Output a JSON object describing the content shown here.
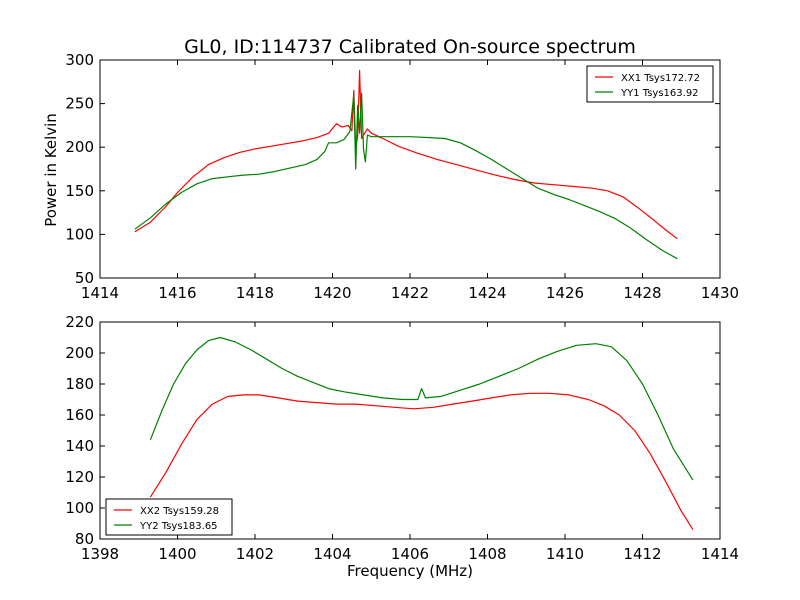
{
  "chart_data": [
    {
      "type": "line",
      "title": "GL0, ID:114737 Calibrated On-source spectrum",
      "xlabel": "",
      "ylabel": "Power in Kelvin",
      "xlim": [
        1414,
        1430
      ],
      "ylim": [
        50,
        300
      ],
      "xticks": [
        "1414",
        "1416",
        "1418",
        "1420",
        "1422",
        "1424",
        "1426",
        "1428",
        "1430"
      ],
      "yticks": [
        "50",
        "100",
        "150",
        "200",
        "250",
        "300"
      ],
      "grid": false,
      "legend_position": "top-right",
      "series": [
        {
          "name": "XX1 Tsys172.72",
          "color": "#ff0000",
          "points": [
            [
              1414.9,
              103
            ],
            [
              1415.3,
              114
            ],
            [
              1415.7,
              132
            ],
            [
              1416.0,
              148
            ],
            [
              1416.4,
              166
            ],
            [
              1416.8,
              180
            ],
            [
              1417.2,
              188
            ],
            [
              1417.6,
              194
            ],
            [
              1418.0,
              198
            ],
            [
              1418.4,
              201
            ],
            [
              1418.8,
              204
            ],
            [
              1419.2,
              207
            ],
            [
              1419.6,
              211
            ],
            [
              1419.9,
              216
            ],
            [
              1420.1,
              227
            ],
            [
              1420.25,
              223
            ],
            [
              1420.4,
              225
            ],
            [
              1420.5,
              219
            ],
            [
              1420.55,
              265
            ],
            [
              1420.6,
              200
            ],
            [
              1420.65,
              212
            ],
            [
              1420.7,
              288
            ],
            [
              1420.75,
              210
            ],
            [
              1420.8,
              214
            ],
            [
              1420.9,
              221
            ],
            [
              1421.0,
              216
            ],
            [
              1421.3,
              210
            ],
            [
              1421.7,
              201
            ],
            [
              1422.2,
              193
            ],
            [
              1422.7,
              186
            ],
            [
              1423.2,
              180
            ],
            [
              1423.7,
              174
            ],
            [
              1424.2,
              168
            ],
            [
              1424.7,
              163
            ],
            [
              1425.2,
              159
            ],
            [
              1425.7,
              157
            ],
            [
              1426.2,
              155
            ],
            [
              1426.7,
              153
            ],
            [
              1427.1,
              150
            ],
            [
              1427.5,
              143
            ],
            [
              1427.9,
              130
            ],
            [
              1428.3,
              116
            ],
            [
              1428.6,
              105
            ],
            [
              1428.9,
              95
            ]
          ]
        },
        {
          "name": "YY1 Tsys163.92",
          "color": "#008000",
          "points": [
            [
              1414.9,
              106
            ],
            [
              1415.3,
              119
            ],
            [
              1415.7,
              135
            ],
            [
              1416.1,
              148
            ],
            [
              1416.5,
              158
            ],
            [
              1416.9,
              164
            ],
            [
              1417.3,
              166
            ],
            [
              1417.7,
              168
            ],
            [
              1418.1,
              169
            ],
            [
              1418.5,
              172
            ],
            [
              1418.9,
              176
            ],
            [
              1419.3,
              180
            ],
            [
              1419.6,
              186
            ],
            [
              1419.8,
              195
            ],
            [
              1419.9,
              205
            ],
            [
              1420.1,
              205
            ],
            [
              1420.3,
              209
            ],
            [
              1420.45,
              218
            ],
            [
              1420.5,
              240
            ],
            [
              1420.55,
              260
            ],
            [
              1420.6,
              175
            ],
            [
              1420.65,
              248
            ],
            [
              1420.7,
              216
            ],
            [
              1420.75,
              262
            ],
            [
              1420.8,
              198
            ],
            [
              1420.85,
              183
            ],
            [
              1420.9,
              214
            ],
            [
              1421.0,
              212
            ],
            [
              1421.5,
              212
            ],
            [
              1422.0,
              212
            ],
            [
              1422.5,
              211
            ],
            [
              1422.9,
              210
            ],
            [
              1423.3,
              205
            ],
            [
              1423.7,
              196
            ],
            [
              1424.1,
              186
            ],
            [
              1424.5,
              175
            ],
            [
              1424.9,
              164
            ],
            [
              1425.3,
              153
            ],
            [
              1425.7,
              146
            ],
            [
              1426.1,
              140
            ],
            [
              1426.5,
              133
            ],
            [
              1426.9,
              126
            ],
            [
              1427.3,
              118
            ],
            [
              1427.7,
              107
            ],
            [
              1428.1,
              94
            ],
            [
              1428.5,
              82
            ],
            [
              1428.9,
              72
            ]
          ]
        }
      ]
    },
    {
      "type": "line",
      "title": "",
      "xlabel": "Frequency (MHz)",
      "ylabel": "",
      "xlim": [
        1398,
        1414
      ],
      "ylim": [
        80,
        220
      ],
      "xticks": [
        "1398",
        "1400",
        "1402",
        "1404",
        "1406",
        "1408",
        "1410",
        "1412",
        "1414"
      ],
      "yticks": [
        "80",
        "100",
        "120",
        "140",
        "160",
        "180",
        "200",
        "220"
      ],
      "grid": false,
      "legend_position": "bottom-left",
      "series": [
        {
          "name": "XX2 Tsys159.28",
          "color": "#ff0000",
          "points": [
            [
              1399.3,
              107
            ],
            [
              1399.7,
              123
            ],
            [
              1400.1,
              141
            ],
            [
              1400.5,
              157
            ],
            [
              1400.9,
              167
            ],
            [
              1401.3,
              172
            ],
            [
              1401.7,
              173
            ],
            [
              1402.1,
              173
            ],
            [
              1402.6,
              171
            ],
            [
              1403.1,
              169
            ],
            [
              1403.6,
              168
            ],
            [
              1404.1,
              167
            ],
            [
              1404.6,
              167
            ],
            [
              1405.1,
              166
            ],
            [
              1405.6,
              165
            ],
            [
              1406.1,
              164
            ],
            [
              1406.6,
              165
            ],
            [
              1407.1,
              167
            ],
            [
              1407.6,
              169
            ],
            [
              1408.1,
              171
            ],
            [
              1408.6,
              173
            ],
            [
              1409.1,
              174
            ],
            [
              1409.6,
              174
            ],
            [
              1410.1,
              173
            ],
            [
              1410.6,
              170
            ],
            [
              1411.0,
              166
            ],
            [
              1411.4,
              160
            ],
            [
              1411.8,
              150
            ],
            [
              1412.2,
              135
            ],
            [
              1412.6,
              117
            ],
            [
              1413.0,
              98
            ],
            [
              1413.3,
              86
            ]
          ]
        },
        {
          "name": "YY2 Tsys183.65",
          "color": "#008000",
          "points": [
            [
              1399.3,
              144
            ],
            [
              1399.6,
              163
            ],
            [
              1399.9,
              180
            ],
            [
              1400.2,
              193
            ],
            [
              1400.5,
              202
            ],
            [
              1400.8,
              208
            ],
            [
              1401.1,
              210
            ],
            [
              1401.5,
              207
            ],
            [
              1401.9,
              202
            ],
            [
              1402.3,
              196
            ],
            [
              1402.7,
              190
            ],
            [
              1403.1,
              185
            ],
            [
              1403.5,
              181
            ],
            [
              1403.9,
              177
            ],
            [
              1404.3,
              175
            ],
            [
              1404.8,
              173
            ],
            [
              1405.3,
              171
            ],
            [
              1405.8,
              170
            ],
            [
              1406.2,
              170
            ],
            [
              1406.3,
              177
            ],
            [
              1406.4,
              171
            ],
            [
              1406.8,
              172
            ],
            [
              1407.3,
              176
            ],
            [
              1407.8,
              180
            ],
            [
              1408.3,
              185
            ],
            [
              1408.8,
              190
            ],
            [
              1409.3,
              196
            ],
            [
              1409.8,
              201
            ],
            [
              1410.3,
              205
            ],
            [
              1410.8,
              206
            ],
            [
              1411.2,
              204
            ],
            [
              1411.6,
              195
            ],
            [
              1412.0,
              180
            ],
            [
              1412.4,
              160
            ],
            [
              1412.8,
              138
            ],
            [
              1413.3,
              118
            ]
          ]
        }
      ]
    }
  ]
}
